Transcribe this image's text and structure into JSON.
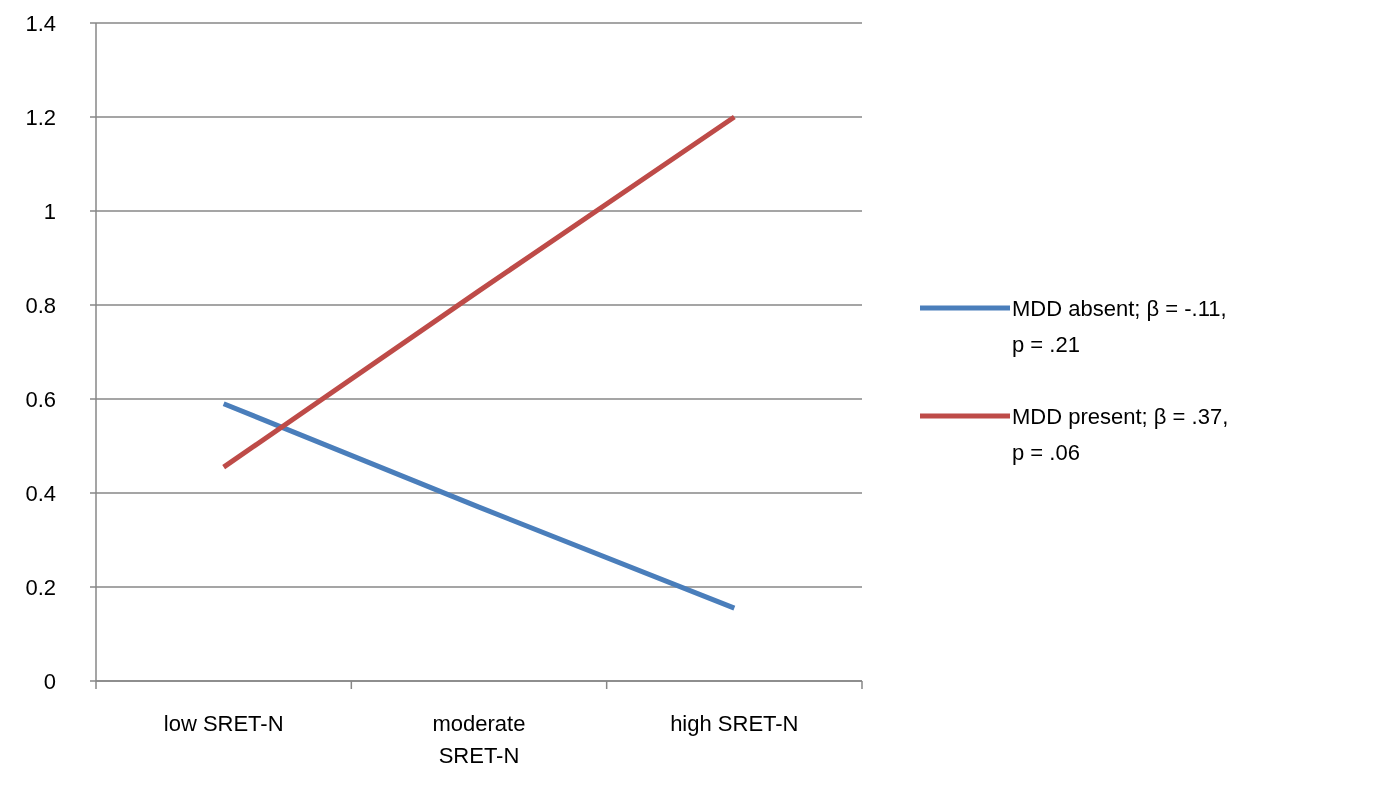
{
  "chart_data": {
    "type": "line",
    "categories": [
      "low SRET-N",
      "moderate SRET-N",
      "high SRET-N"
    ],
    "series": [
      {
        "name": "MDD absent; β = -.11, p = .21",
        "color": "#4a7ebb",
        "values": [
          0.59,
          0.37,
          0.155
        ]
      },
      {
        "name": "MDD present; β = .37, p = .06",
        "color": "#be4b48",
        "values": [
          0.455,
          0.83,
          1.2
        ]
      }
    ],
    "ylim": [
      0,
      1.4
    ],
    "yticks": [
      0,
      0.2,
      0.4,
      0.6,
      0.8,
      1,
      1.2,
      1.4
    ],
    "grid": "y",
    "legend": "right",
    "marker": "none",
    "line_style": "solid"
  }
}
